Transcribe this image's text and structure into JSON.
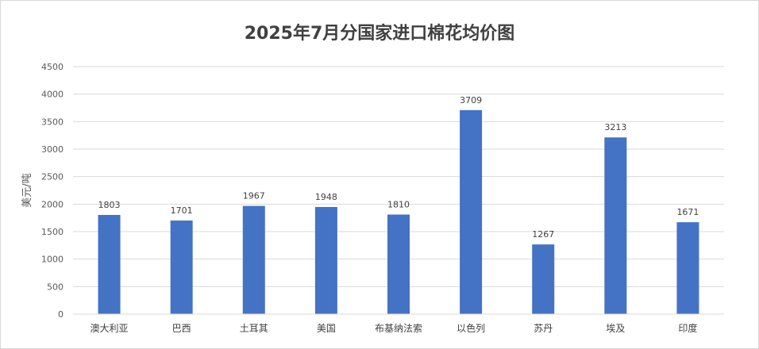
{
  "chart_data": {
    "type": "bar",
    "title": "2025年7月分国家进口棉花均价图",
    "ylabel": "美元/吨",
    "xlabel": "",
    "categories": [
      "澳大利亚",
      "巴西",
      "土耳其",
      "美国",
      "布基纳法索",
      "以色列",
      "苏丹",
      "埃及",
      "印度"
    ],
    "values": [
      1803,
      1701,
      1967,
      1948,
      1810,
      3709,
      1267,
      3213,
      1671
    ],
    "ylim": [
      0,
      4500
    ],
    "yticks": [
      0,
      500,
      1000,
      1500,
      2000,
      2500,
      3000,
      3500,
      4000,
      4500
    ],
    "grid": true,
    "data_labels": true,
    "bar_color": "#4472c4"
  }
}
